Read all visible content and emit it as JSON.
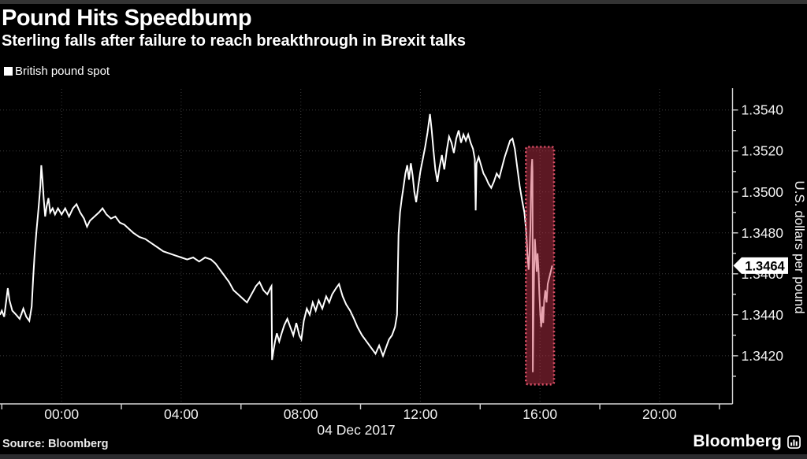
{
  "header": {
    "title": "Pound Hits Speedbump",
    "subtitle": "Sterling falls after failure to reach breakthrough in Brexit talks"
  },
  "legend": {
    "label": "British pound spot",
    "swatch_color": "#ffffff"
  },
  "footer": {
    "source": "Source: Bloomberg",
    "brand": "Bloomberg",
    "brand_icon": "bloomberg-mark-icon"
  },
  "colors": {
    "background": "#000000",
    "line": "#ffffff",
    "grid": "#3d3d3d",
    "axis_text": "#f1f1f1",
    "highlight_fill": "rgba(204,54,78,0.45)",
    "highlight_border": "#de5068",
    "badge_bg": "#ffffff",
    "badge_text": "#000000"
  },
  "chart_data": {
    "type": "line",
    "title": "Pound Hits Speedbump",
    "subtitle": "Sterling falls after failure to reach breakthrough in Brexit talks",
    "grid": "dotted",
    "legend_position": "top-left",
    "x_axis": {
      "date_label": "04 Dec 2017",
      "tick_labels": [
        "00:00",
        "04:00",
        "08:00",
        "12:00",
        "16:00",
        "20:00"
      ],
      "label_hours": [
        0,
        4,
        8,
        12,
        16,
        20
      ],
      "boundary_tick_hours": [
        -2,
        2,
        6,
        10,
        14,
        18,
        22
      ],
      "range_hours": [
        -2.06,
        22.44
      ]
    },
    "y_axis": {
      "label": "U.S. dollars per pound",
      "side": "right",
      "tick_labels": [
        "1.3420",
        "1.3440",
        "1.3460",
        "1.3480",
        "1.3500",
        "1.3520",
        "1.3540"
      ],
      "tick_values": [
        1.342,
        1.344,
        1.346,
        1.348,
        1.35,
        1.352,
        1.354
      ],
      "minor_tick_values": [
        1.341,
        1.343,
        1.345,
        1.347,
        1.349,
        1.351,
        1.353
      ],
      "range": [
        1.33965,
        1.35495
      ]
    },
    "last_price": {
      "value": 1.3464,
      "label": "1.3464"
    },
    "highlight_region": {
      "t_start": 15.53,
      "t_end": 16.47,
      "v_low": 1.3406,
      "v_high": 1.3522,
      "fill": "rgba(204,54,78,0.45)",
      "border_color": "#de5068",
      "border_style": "dotted"
    },
    "series": [
      {
        "name": "British pound spot",
        "color": "#ffffff",
        "points": [
          [
            -2.06,
            1.344
          ],
          [
            -2.0,
            1.3442
          ],
          [
            -1.92,
            1.3439
          ],
          [
            -1.84,
            1.3448
          ],
          [
            -1.8,
            1.3453
          ],
          [
            -1.74,
            1.3447
          ],
          [
            -1.65,
            1.3442
          ],
          [
            -1.52,
            1.344
          ],
          [
            -1.4,
            1.3438
          ],
          [
            -1.28,
            1.3443
          ],
          [
            -1.18,
            1.3439
          ],
          [
            -1.08,
            1.3437
          ],
          [
            -1.0,
            1.3444
          ],
          [
            -0.95,
            1.3458
          ],
          [
            -0.9,
            1.347
          ],
          [
            -0.84,
            1.3481
          ],
          [
            -0.77,
            1.3492
          ],
          [
            -0.71,
            1.3503
          ],
          [
            -0.68,
            1.3513
          ],
          [
            -0.64,
            1.3506
          ],
          [
            -0.6,
            1.3497
          ],
          [
            -0.55,
            1.3488
          ],
          [
            -0.5,
            1.3493
          ],
          [
            -0.44,
            1.3497
          ],
          [
            -0.38,
            1.349
          ],
          [
            -0.3,
            1.3492
          ],
          [
            -0.22,
            1.3489
          ],
          [
            -0.12,
            1.3492
          ],
          [
            0.0,
            1.3489
          ],
          [
            0.12,
            1.3492
          ],
          [
            0.25,
            1.3488
          ],
          [
            0.38,
            1.3492
          ],
          [
            0.5,
            1.3494
          ],
          [
            0.62,
            1.349
          ],
          [
            0.75,
            1.3487
          ],
          [
            0.85,
            1.3483
          ],
          [
            0.95,
            1.3486
          ],
          [
            1.1,
            1.3488
          ],
          [
            1.25,
            1.349
          ],
          [
            1.37,
            1.3492
          ],
          [
            1.5,
            1.3489
          ],
          [
            1.65,
            1.3487
          ],
          [
            1.8,
            1.3488
          ],
          [
            1.95,
            1.3485
          ],
          [
            2.1,
            1.3484
          ],
          [
            2.25,
            1.3482
          ],
          [
            2.4,
            1.348
          ],
          [
            2.6,
            1.3478
          ],
          [
            2.8,
            1.3477
          ],
          [
            3.0,
            1.3475
          ],
          [
            3.2,
            1.3473
          ],
          [
            3.4,
            1.3471
          ],
          [
            3.6,
            1.347
          ],
          [
            3.8,
            1.3469
          ],
          [
            4.0,
            1.3468
          ],
          [
            4.2,
            1.3467
          ],
          [
            4.4,
            1.3468
          ],
          [
            4.6,
            1.3466
          ],
          [
            4.8,
            1.3468
          ],
          [
            5.0,
            1.3467
          ],
          [
            5.15,
            1.3465
          ],
          [
            5.3,
            1.3462
          ],
          [
            5.45,
            1.3459
          ],
          [
            5.6,
            1.3456
          ],
          [
            5.75,
            1.3452
          ],
          [
            5.9,
            1.345
          ],
          [
            6.05,
            1.3448
          ],
          [
            6.2,
            1.3446
          ],
          [
            6.35,
            1.345
          ],
          [
            6.5,
            1.3454
          ],
          [
            6.62,
            1.3456
          ],
          [
            6.75,
            1.3452
          ],
          [
            6.88,
            1.345
          ],
          [
            6.98,
            1.3453
          ],
          [
            7.02,
            1.3454
          ],
          [
            7.04,
            1.3418
          ],
          [
            7.08,
            1.3422
          ],
          [
            7.14,
            1.3427
          ],
          [
            7.2,
            1.3431
          ],
          [
            7.28,
            1.3427
          ],
          [
            7.36,
            1.3431
          ],
          [
            7.45,
            1.3435
          ],
          [
            7.55,
            1.3438
          ],
          [
            7.65,
            1.3434
          ],
          [
            7.75,
            1.343
          ],
          [
            7.85,
            1.3436
          ],
          [
            7.95,
            1.343
          ],
          [
            8.02,
            1.3428
          ],
          [
            8.1,
            1.3437
          ],
          [
            8.2,
            1.3443
          ],
          [
            8.3,
            1.344
          ],
          [
            8.4,
            1.3446
          ],
          [
            8.5,
            1.3442
          ],
          [
            8.6,
            1.3447
          ],
          [
            8.72,
            1.3443
          ],
          [
            8.85,
            1.3449
          ],
          [
            8.95,
            1.3446
          ],
          [
            9.05,
            1.345
          ],
          [
            9.18,
            1.3453
          ],
          [
            9.28,
            1.3455
          ],
          [
            9.4,
            1.3449
          ],
          [
            9.52,
            1.3445
          ],
          [
            9.65,
            1.3442
          ],
          [
            9.78,
            1.3438
          ],
          [
            9.9,
            1.3434
          ],
          [
            10.05,
            1.343
          ],
          [
            10.2,
            1.3427
          ],
          [
            10.35,
            1.3424
          ],
          [
            10.5,
            1.3421
          ],
          [
            10.62,
            1.3425
          ],
          [
            10.75,
            1.342
          ],
          [
            10.85,
            1.3424
          ],
          [
            10.95,
            1.3428
          ],
          [
            11.05,
            1.343
          ],
          [
            11.15,
            1.3434
          ],
          [
            11.22,
            1.344
          ],
          [
            11.27,
            1.3479
          ],
          [
            11.32,
            1.349
          ],
          [
            11.38,
            1.3497
          ],
          [
            11.44,
            1.3503
          ],
          [
            11.5,
            1.3509
          ],
          [
            11.56,
            1.3513
          ],
          [
            11.62,
            1.3506
          ],
          [
            11.68,
            1.3514
          ],
          [
            11.74,
            1.3508
          ],
          [
            11.8,
            1.35
          ],
          [
            11.86,
            1.3495
          ],
          [
            11.93,
            1.3503
          ],
          [
            12.0,
            1.351
          ],
          [
            12.08,
            1.3516
          ],
          [
            12.16,
            1.3522
          ],
          [
            12.24,
            1.3529
          ],
          [
            12.32,
            1.3538
          ],
          [
            12.38,
            1.353
          ],
          [
            12.44,
            1.352
          ],
          [
            12.5,
            1.3511
          ],
          [
            12.57,
            1.3505
          ],
          [
            12.64,
            1.3512
          ],
          [
            12.72,
            1.3518
          ],
          [
            12.8,
            1.3511
          ],
          [
            12.88,
            1.352
          ],
          [
            12.96,
            1.3527
          ],
          [
            13.04,
            1.3524
          ],
          [
            13.12,
            1.3519
          ],
          [
            13.2,
            1.3526
          ],
          [
            13.28,
            1.353
          ],
          [
            13.36,
            1.3524
          ],
          [
            13.44,
            1.3528
          ],
          [
            13.52,
            1.3525
          ],
          [
            13.6,
            1.3528
          ],
          [
            13.68,
            1.3524
          ],
          [
            13.76,
            1.3521
          ],
          [
            13.82,
            1.3516
          ],
          [
            13.85,
            1.3491
          ],
          [
            13.88,
            1.3514
          ],
          [
            13.95,
            1.3517
          ],
          [
            14.03,
            1.3513
          ],
          [
            14.11,
            1.3509
          ],
          [
            14.19,
            1.3507
          ],
          [
            14.28,
            1.3504
          ],
          [
            14.37,
            1.3502
          ],
          [
            14.46,
            1.3505
          ],
          [
            14.55,
            1.3509
          ],
          [
            14.64,
            1.3507
          ],
          [
            14.73,
            1.3512
          ],
          [
            14.82,
            1.3517
          ],
          [
            14.91,
            1.3521
          ],
          [
            15.0,
            1.3525
          ],
          [
            15.08,
            1.3526
          ],
          [
            15.16,
            1.3521
          ],
          [
            15.24,
            1.3512
          ],
          [
            15.32,
            1.3503
          ],
          [
            15.4,
            1.3496
          ],
          [
            15.48,
            1.349
          ],
          [
            15.54,
            1.3481
          ],
          [
            15.58,
            1.347
          ],
          [
            15.62,
            1.3462
          ],
          [
            15.65,
            1.347
          ],
          [
            15.68,
            1.3482
          ],
          [
            15.7,
            1.35
          ],
          [
            15.72,
            1.3512
          ],
          [
            15.74,
            1.3516
          ],
          [
            15.75,
            1.351
          ],
          [
            15.76,
            1.3412
          ],
          [
            15.78,
            1.3436
          ],
          [
            15.8,
            1.3458
          ],
          [
            15.83,
            1.3477
          ],
          [
            15.86,
            1.3469
          ],
          [
            15.89,
            1.3461
          ],
          [
            15.92,
            1.347
          ],
          [
            15.95,
            1.3462
          ],
          [
            15.98,
            1.345
          ],
          [
            16.01,
            1.344
          ],
          [
            16.04,
            1.3434
          ],
          [
            16.08,
            1.3444
          ],
          [
            16.11,
            1.3436
          ],
          [
            16.14,
            1.3447
          ],
          [
            16.18,
            1.3452
          ],
          [
            16.22,
            1.3446
          ],
          [
            16.26,
            1.3455
          ],
          [
            16.31,
            1.3458
          ],
          [
            16.36,
            1.3461
          ],
          [
            16.41,
            1.3464
          ]
        ]
      }
    ]
  }
}
